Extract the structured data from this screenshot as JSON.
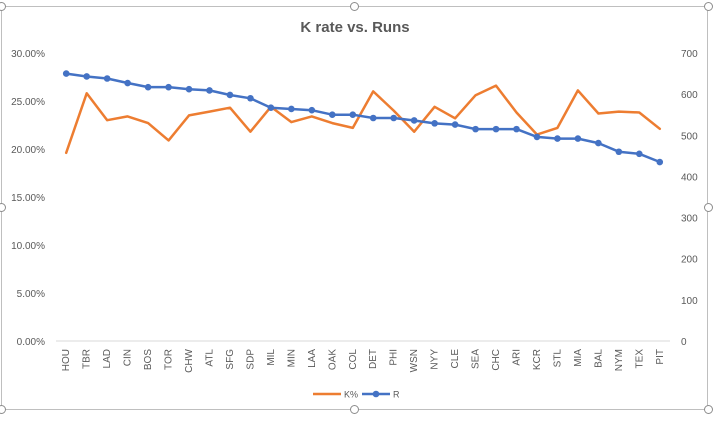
{
  "chart_data": {
    "type": "line",
    "title": "K rate vs. Runs",
    "categories": [
      "HOU",
      "TBR",
      "LAD",
      "CIN",
      "BOS",
      "TOR",
      "CHW",
      "ATL",
      "SFG",
      "SDP",
      "MIL",
      "MIN",
      "LAA",
      "OAK",
      "COL",
      "DET",
      "PHI",
      "WSN",
      "NYY",
      "CLE",
      "SEA",
      "CHC",
      "ARI",
      "KCR",
      "STL",
      "MIA",
      "BAL",
      "NYM",
      "TEX",
      "PIT"
    ],
    "series": [
      {
        "name": "K%",
        "axis": "left",
        "color": "#ED7D31",
        "markers": false,
        "values": [
          0.196,
          0.258,
          0.23,
          0.234,
          0.227,
          0.209,
          0.235,
          0.239,
          0.243,
          0.218,
          0.244,
          0.228,
          0.234,
          0.227,
          0.222,
          0.26,
          0.24,
          0.218,
          0.244,
          0.232,
          0.256,
          0.266,
          0.238,
          0.215,
          0.222,
          0.261,
          0.237,
          0.239,
          0.238,
          0.221
        ]
      },
      {
        "name": "R",
        "axis": "right",
        "color": "#4472C4",
        "markers": true,
        "values": [
          650,
          643,
          638,
          627,
          617,
          617,
          612,
          609,
          598,
          590,
          567,
          564,
          561,
          550,
          550,
          542,
          542,
          536,
          529,
          526,
          515,
          515,
          515,
          496,
          492,
          492,
          481,
          460,
          455,
          435
        ]
      }
    ],
    "y_left": {
      "min": 0,
      "max": 0.3,
      "step": 0.05,
      "tick_labels": [
        "0.00%",
        "5.00%",
        "10.00%",
        "15.00%",
        "20.00%",
        "25.00%",
        "30.00%"
      ]
    },
    "y_right": {
      "min": 0,
      "max": 700,
      "step": 100,
      "tick_labels": [
        "0",
        "100",
        "200",
        "300",
        "400",
        "500",
        "600",
        "700"
      ]
    },
    "grid": false,
    "legend_position": "bottom"
  }
}
